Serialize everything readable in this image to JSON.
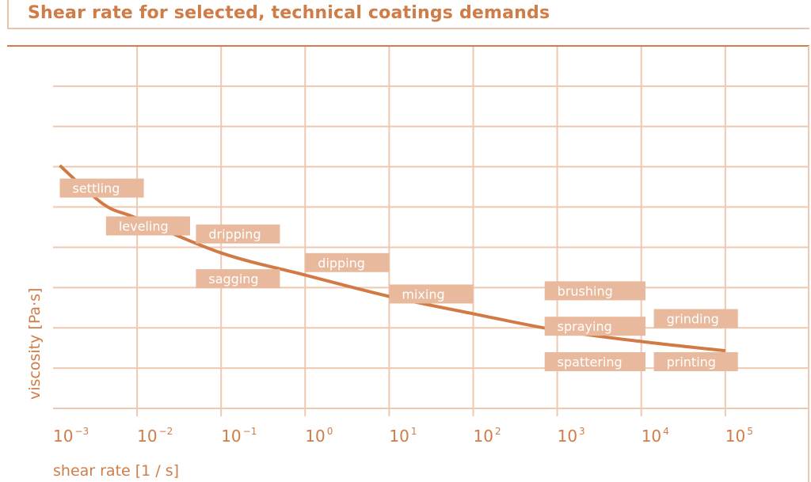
{
  "chart_data": {
    "type": "line",
    "title": "Shear rate for selected, technical coatings demands",
    "xlabel": "shear rate [1 / s]",
    "ylabel": "viscosity [Pa·s]",
    "xscale": "log",
    "xlim_exponent": [
      -3,
      6
    ],
    "x_ticks": [
      {
        "base": "10",
        "exp": "−3",
        "value": -3
      },
      {
        "base": "10",
        "exp": "−2",
        "value": -2
      },
      {
        "base": "10",
        "exp": "−1",
        "value": -1
      },
      {
        "base": "10",
        "exp": "0",
        "value": 0
      },
      {
        "base": "10",
        "exp": "1",
        "value": 1
      },
      {
        "base": "10",
        "exp": "2",
        "value": 2
      },
      {
        "base": "10",
        "exp": "3",
        "value": 3
      },
      {
        "base": "10",
        "exp": "4",
        "value": 4
      },
      {
        "base": "10",
        "exp": "5",
        "value": 5
      }
    ],
    "y_gridlines": 9,
    "ylim": [
      0,
      9
    ],
    "y_ticks_labeled": false,
    "grid": true,
    "series": [
      {
        "name": "viscosity curve",
        "color": "#d27a45",
        "points": [
          {
            "log_x": -2.92,
            "y": 6.03
          },
          {
            "log_x": -2.4,
            "y": 5.07
          },
          {
            "log_x": -2.0,
            "y": 4.72
          },
          {
            "log_x": -1.0,
            "y": 3.86
          },
          {
            "log_x": 0.0,
            "y": 3.31
          },
          {
            "log_x": 1.0,
            "y": 2.78
          },
          {
            "log_x": 2.0,
            "y": 2.35
          },
          {
            "log_x": 3.0,
            "y": 1.94
          },
          {
            "log_x": 4.0,
            "y": 1.66
          },
          {
            "log_x": 5.0,
            "y": 1.43
          }
        ]
      }
    ],
    "annotations": [
      {
        "label": "settling",
        "log_x_range": [
          -2.92,
          -1.92
        ],
        "y_center": 5.47
      },
      {
        "label": "leveling",
        "log_x_range": [
          -2.37,
          -1.37
        ],
        "y_center": 4.53
      },
      {
        "label": "dripping",
        "log_x_range": [
          -1.3,
          -0.3
        ],
        "y_center": 4.33
      },
      {
        "label": "sagging",
        "log_x_range": [
          -1.3,
          -0.3
        ],
        "y_center": 3.22
      },
      {
        "label": "dipping",
        "log_x_range": [
          0.0,
          1.0
        ],
        "y_center": 3.62
      },
      {
        "label": "mixing",
        "log_x_range": [
          1.0,
          2.0
        ],
        "y_center": 2.84
      },
      {
        "label": "brushing",
        "log_x_range": [
          2.85,
          4.05
        ],
        "y_center": 2.92
      },
      {
        "label": "spraying",
        "log_x_range": [
          2.85,
          4.05
        ],
        "y_center": 2.04
      },
      {
        "label": "spattering",
        "log_x_range": [
          2.85,
          4.05
        ],
        "y_center": 1.16
      },
      {
        "label": "grinding",
        "log_x_range": [
          4.15,
          5.15
        ],
        "y_center": 2.23
      },
      {
        "label": "printing",
        "log_x_range": [
          4.15,
          5.15
        ],
        "y_center": 1.16
      }
    ]
  },
  "colors": {
    "accent": "#cf7c47",
    "grid": "#eec8b0",
    "label_box": "#e8b99c",
    "curve": "#d27a45"
  }
}
